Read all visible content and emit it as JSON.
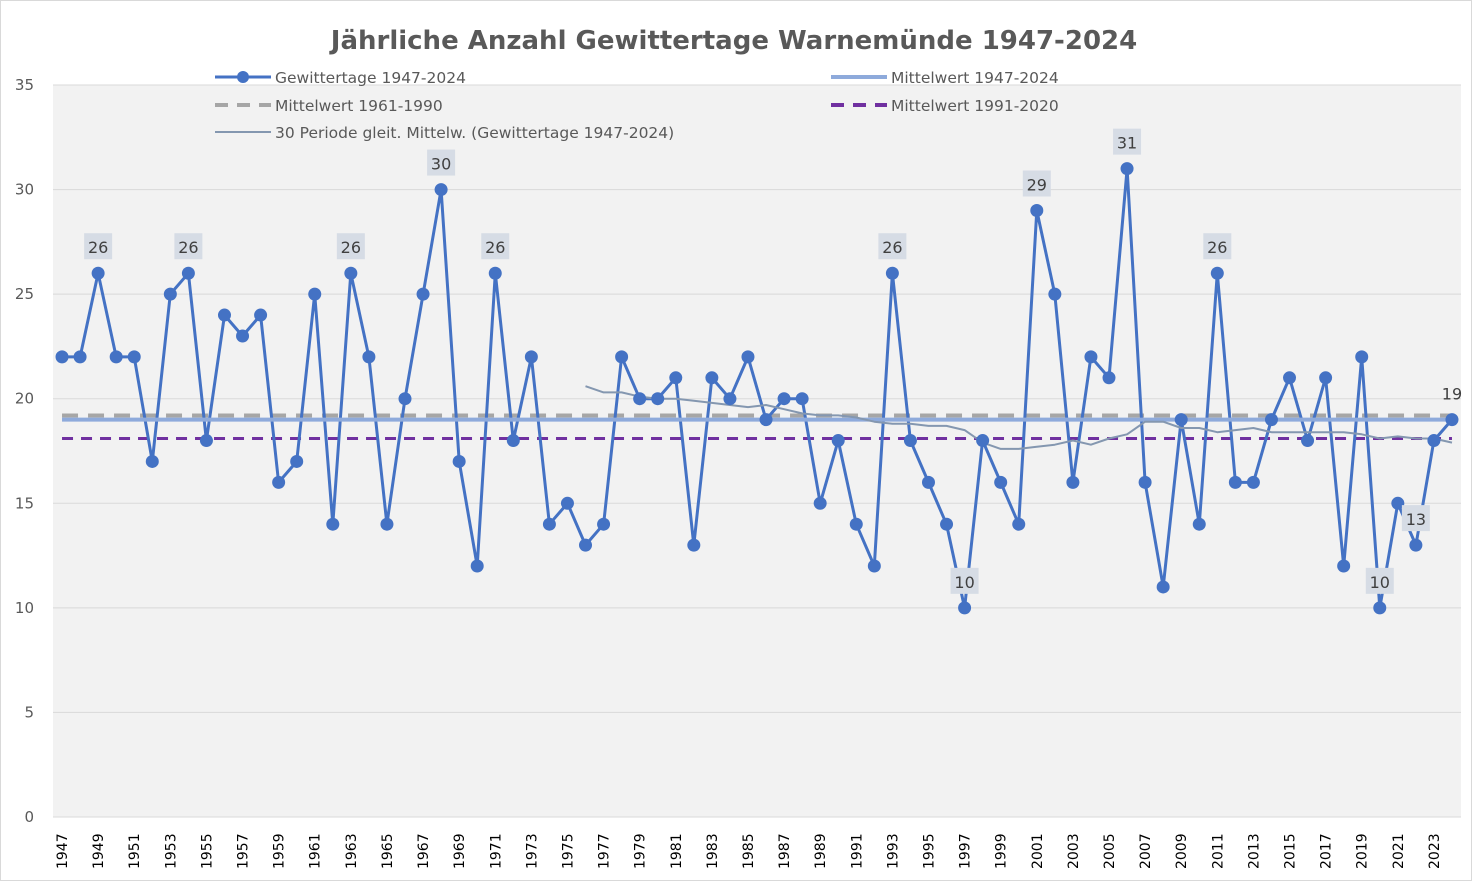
{
  "chart_data": {
    "type": "line",
    "title": "Jährliche Anzahl Gewittertage Warnemünde 1947-2024",
    "xlabel": "",
    "ylabel": "",
    "ylim": [
      0,
      35
    ],
    "y_ticks": [
      0,
      5,
      10,
      15,
      20,
      25,
      30,
      35
    ],
    "grid": "horizontal",
    "legend_position": "top",
    "x": [
      1947,
      1948,
      1949,
      1950,
      1951,
      1952,
      1953,
      1954,
      1955,
      1956,
      1957,
      1958,
      1959,
      1960,
      1961,
      1962,
      1963,
      1964,
      1965,
      1966,
      1967,
      1968,
      1969,
      1970,
      1971,
      1972,
      1973,
      1974,
      1975,
      1976,
      1977,
      1978,
      1979,
      1980,
      1981,
      1982,
      1983,
      1984,
      1985,
      1986,
      1987,
      1988,
      1989,
      1990,
      1991,
      1992,
      1993,
      1994,
      1995,
      1996,
      1997,
      1998,
      1999,
      2000,
      2001,
      2002,
      2003,
      2004,
      2005,
      2006,
      2007,
      2008,
      2009,
      2010,
      2011,
      2012,
      2013,
      2014,
      2015,
      2016,
      2017,
      2018,
      2019,
      2020,
      2021,
      2022,
      2023,
      2024
    ],
    "x_tick_labels": [
      "1947",
      "1949",
      "1951",
      "1953",
      "1955",
      "1957",
      "1959",
      "1961",
      "1963",
      "1965",
      "1967",
      "1969",
      "1971",
      "1973",
      "1975",
      "1977",
      "1979",
      "1981",
      "1983",
      "1985",
      "1987",
      "1989",
      "1991",
      "1993",
      "1995",
      "1997",
      "1999",
      "2001",
      "2003",
      "2005",
      "2007",
      "2009",
      "2011",
      "2013",
      "2015",
      "2017",
      "2019",
      "2021",
      "2023"
    ],
    "series": [
      {
        "name": "Gewittertage 1947-2024",
        "color": "#4472c4",
        "style": "line-markers",
        "values": [
          22,
          22,
          26,
          22,
          22,
          17,
          25,
          26,
          18,
          24,
          23,
          24,
          16,
          17,
          25,
          14,
          26,
          22,
          14,
          20,
          25,
          30,
          17,
          12,
          26,
          18,
          22,
          14,
          15,
          13,
          14,
          22,
          20,
          20,
          21,
          13,
          21,
          20,
          22,
          19,
          20,
          20,
          15,
          18,
          14,
          12,
          26,
          18,
          16,
          14,
          10,
          18,
          16,
          14,
          29,
          25,
          16,
          22,
          21,
          31,
          16,
          11,
          19,
          14,
          26,
          16,
          16,
          19,
          21,
          18,
          21,
          12,
          22,
          10,
          15,
          13,
          18,
          19
        ]
      },
      {
        "name": "Mittelwert 1947-2024",
        "color": "#8eaadb",
        "style": "solid",
        "value": 19.0
      },
      {
        "name": "Mittelwert 1961-1990",
        "color": "#a6a6a6",
        "style": "dashed",
        "value": 19.2
      },
      {
        "name": "Mittelwert 1991-2020",
        "color": "#7030a0",
        "style": "dashed",
        "value": 18.1
      },
      {
        "name": "30 Periode gleit. Mittelw. (Gewittertage 1947-2024)",
        "color": "#8497b0",
        "style": "thin-line",
        "x": [
          1976,
          1977,
          1978,
          1979,
          1980,
          1981,
          1982,
          1983,
          1984,
          1985,
          1986,
          1987,
          1988,
          1989,
          1990,
          1991,
          1992,
          1993,
          1994,
          1995,
          1996,
          1997,
          1998,
          1999,
          2000,
          2001,
          2002,
          2003,
          2004,
          2005,
          2006,
          2007,
          2008,
          2009,
          2010,
          2011,
          2012,
          2013,
          2014,
          2015,
          2016,
          2017,
          2018,
          2019,
          2020,
          2021,
          2022,
          2023,
          2024
        ],
        "values": [
          20.6,
          20.3,
          20.3,
          20.1,
          20.0,
          20.0,
          19.9,
          19.8,
          19.7,
          19.6,
          19.7,
          19.5,
          19.3,
          19.2,
          19.2,
          19.1,
          18.9,
          18.8,
          18.8,
          18.7,
          18.7,
          18.5,
          17.9,
          17.6,
          17.6,
          17.7,
          17.8,
          18.0,
          17.8,
          18.1,
          18.3,
          18.9,
          18.9,
          18.6,
          18.6,
          18.4,
          18.5,
          18.6,
          18.4,
          18.4,
          18.4,
          18.4,
          18.4,
          18.3,
          18.1,
          18.2,
          18.1,
          18.1,
          17.9
        ]
      }
    ],
    "data_labels": [
      {
        "x": 1949,
        "label": "26"
      },
      {
        "x": 1954,
        "label": "26"
      },
      {
        "x": 1963,
        "label": "26"
      },
      {
        "x": 1968,
        "label": "30"
      },
      {
        "x": 1971,
        "label": "26"
      },
      {
        "x": 1993,
        "label": "26"
      },
      {
        "x": 1997,
        "label": "10"
      },
      {
        "x": 2001,
        "label": "29"
      },
      {
        "x": 2006,
        "label": "31"
      },
      {
        "x": 2011,
        "label": "26"
      },
      {
        "x": 2020,
        "label": "10"
      },
      {
        "x": 2022,
        "label": "13"
      },
      {
        "x": 2024,
        "label": "19"
      }
    ]
  }
}
